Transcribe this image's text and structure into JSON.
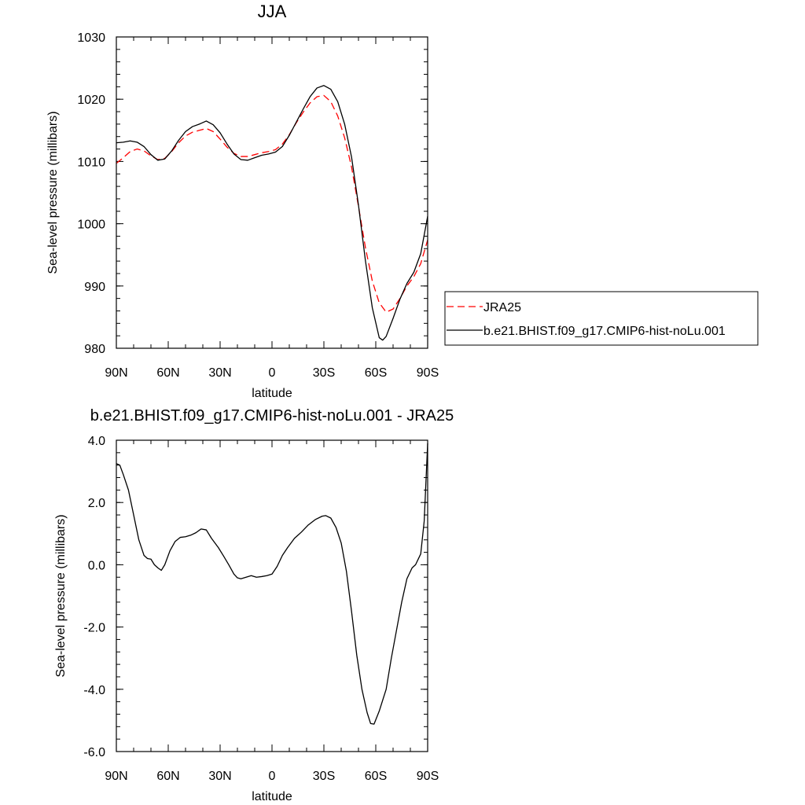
{
  "chart_data": [
    {
      "type": "line",
      "title": "JJA",
      "xlabel": "latitude",
      "ylabel": "Sea-level pressure (millibars)",
      "xlim": [
        90,
        -90
      ],
      "ylim": [
        980,
        1030
      ],
      "x_ticks": [
        90,
        60,
        30,
        0,
        -30,
        -60,
        -90
      ],
      "x_tick_labels": [
        "90N",
        "60N",
        "30N",
        "0",
        "30S",
        "60S",
        "90S"
      ],
      "y_ticks": [
        980,
        990,
        1000,
        1010,
        1020,
        1030
      ],
      "y_tick_labels": [
        "980",
        "990",
        "1000",
        "1010",
        "1020",
        "1030"
      ],
      "legend_position": "right",
      "series": [
        {
          "name": "JRA25",
          "color": "#ff0000",
          "dash": "dashed",
          "points": [
            [
              90,
              1009.7
            ],
            [
              86,
              1010.6
            ],
            [
              82,
              1011.6
            ],
            [
              78,
              1012.0
            ],
            [
              74,
              1011.7
            ],
            [
              70,
              1010.9
            ],
            [
              66,
              1010.3
            ],
            [
              62,
              1010.5
            ],
            [
              58,
              1011.6
            ],
            [
              54,
              1013.0
            ],
            [
              50,
              1014.1
            ],
            [
              46,
              1014.7
            ],
            [
              42,
              1015.0
            ],
            [
              38,
              1015.3
            ],
            [
              34,
              1014.8
            ],
            [
              30,
              1013.6
            ],
            [
              26,
              1012.3
            ],
            [
              22,
              1011.3
            ],
            [
              18,
              1010.8
            ],
            [
              14,
              1010.8
            ],
            [
              10,
              1011.1
            ],
            [
              6,
              1011.4
            ],
            [
              2,
              1011.6
            ],
            [
              -2,
              1011.9
            ],
            [
              -6,
              1012.8
            ],
            [
              -10,
              1014.3
            ],
            [
              -14,
              1016.2
            ],
            [
              -18,
              1017.9
            ],
            [
              -22,
              1019.4
            ],
            [
              -26,
              1020.4
            ],
            [
              -30,
              1020.6
            ],
            [
              -34,
              1019.6
            ],
            [
              -38,
              1017.3
            ],
            [
              -42,
              1013.8
            ],
            [
              -46,
              1009.1
            ],
            [
              -50,
              1002.8
            ],
            [
              -54,
              996.2
            ],
            [
              -58,
              990.8
            ],
            [
              -62,
              987.3
            ],
            [
              -66,
              985.8
            ],
            [
              -70,
              986.3
            ],
            [
              -74,
              988.0
            ],
            [
              -78,
              990.0
            ],
            [
              -82,
              991.5
            ],
            [
              -86,
              993.6
            ],
            [
              -90,
              997.4
            ]
          ]
        },
        {
          "name": "b.e21.BHIST.f09_g17.CMIP6-hist-noLu.001",
          "color": "#000000",
          "dash": "solid",
          "points": [
            [
              90,
              1013.0
            ],
            [
              86,
              1013.1
            ],
            [
              82,
              1013.3
            ],
            [
              78,
              1013.1
            ],
            [
              74,
              1012.4
            ],
            [
              70,
              1011.1
            ],
            [
              66,
              1010.2
            ],
            [
              62,
              1010.4
            ],
            [
              58,
              1011.7
            ],
            [
              54,
              1013.4
            ],
            [
              50,
              1014.8
            ],
            [
              46,
              1015.6
            ],
            [
              42,
              1016.0
            ],
            [
              38,
              1016.5
            ],
            [
              34,
              1015.9
            ],
            [
              30,
              1014.6
            ],
            [
              26,
              1012.8
            ],
            [
              22,
              1011.2
            ],
            [
              18,
              1010.3
            ],
            [
              14,
              1010.2
            ],
            [
              10,
              1010.6
            ],
            [
              6,
              1011.0
            ],
            [
              2,
              1011.2
            ],
            [
              -2,
              1011.5
            ],
            [
              -6,
              1012.4
            ],
            [
              -10,
              1014.2
            ],
            [
              -14,
              1016.3
            ],
            [
              -18,
              1018.4
            ],
            [
              -22,
              1020.4
            ],
            [
              -26,
              1021.8
            ],
            [
              -30,
              1022.2
            ],
            [
              -34,
              1021.6
            ],
            [
              -38,
              1019.6
            ],
            [
              -42,
              1016.0
            ],
            [
              -46,
              1010.7
            ],
            [
              -50,
              1003.0
            ],
            [
              -54,
              994.1
            ],
            [
              -58,
              986.5
            ],
            [
              -62,
              981.7
            ],
            [
              -64,
              981.3
            ],
            [
              -66,
              981.9
            ],
            [
              -70,
              984.8
            ],
            [
              -74,
              987.9
            ],
            [
              -78,
              990.4
            ],
            [
              -82,
              992.2
            ],
            [
              -86,
              995.2
            ],
            [
              -90,
              1001.2
            ]
          ]
        }
      ]
    },
    {
      "type": "line",
      "title": "b.e21.BHIST.f09_g17.CMIP6-hist-noLu.001 - JRA25",
      "xlabel": "latitude",
      "ylabel": "Sea-level pressure (millibars)",
      "xlim": [
        90,
        -90
      ],
      "ylim": [
        -6,
        4
      ],
      "x_ticks": [
        90,
        60,
        30,
        0,
        -30,
        -60,
        -90
      ],
      "x_tick_labels": [
        "90N",
        "60N",
        "30N",
        "0",
        "30S",
        "60S",
        "90S"
      ],
      "y_ticks": [
        -6,
        -4,
        -2,
        0,
        2,
        4
      ],
      "y_tick_labels": [
        "-6.0",
        "-4.0",
        "-2.0",
        "0.0",
        "2.0",
        "4.0"
      ],
      "series": [
        {
          "color": "#000000",
          "dash": "solid",
          "points": [
            [
              90,
              3.25
            ],
            [
              88,
              3.2
            ],
            [
              86,
              2.9
            ],
            [
              83,
              2.4
            ],
            [
              80,
              1.6
            ],
            [
              77,
              0.8
            ],
            [
              74,
              0.3
            ],
            [
              72,
              0.2
            ],
            [
              70,
              0.18
            ],
            [
              68,
              0.0
            ],
            [
              66,
              -0.1
            ],
            [
              64,
              -0.18
            ],
            [
              62,
              0.0
            ],
            [
              59,
              0.45
            ],
            [
              56,
              0.75
            ],
            [
              53,
              0.88
            ],
            [
              50,
              0.9
            ],
            [
              47,
              0.95
            ],
            [
              44,
              1.03
            ],
            [
              41,
              1.15
            ],
            [
              38,
              1.12
            ],
            [
              35,
              0.85
            ],
            [
              31,
              0.55
            ],
            [
              28,
              0.28
            ],
            [
              25,
              0.0
            ],
            [
              22,
              -0.3
            ],
            [
              20,
              -0.42
            ],
            [
              18,
              -0.45
            ],
            [
              15,
              -0.4
            ],
            [
              12,
              -0.35
            ],
            [
              9,
              -0.4
            ],
            [
              6,
              -0.38
            ],
            [
              3,
              -0.35
            ],
            [
              0,
              -0.3
            ],
            [
              -3,
              -0.05
            ],
            [
              -6,
              0.3
            ],
            [
              -9,
              0.55
            ],
            [
              -13,
              0.85
            ],
            [
              -17,
              1.05
            ],
            [
              -21,
              1.28
            ],
            [
              -25,
              1.45
            ],
            [
              -29,
              1.56
            ],
            [
              -31,
              1.58
            ],
            [
              -34,
              1.5
            ],
            [
              -37,
              1.2
            ],
            [
              -40,
              0.7
            ],
            [
              -43,
              -0.2
            ],
            [
              -46,
              -1.5
            ],
            [
              -49,
              -2.9
            ],
            [
              -52,
              -4.0
            ],
            [
              -55,
              -4.75
            ],
            [
              -57,
              -5.1
            ],
            [
              -59,
              -5.12
            ],
            [
              -62,
              -4.7
            ],
            [
              -66,
              -4.0
            ],
            [
              -69,
              -3.0
            ],
            [
              -72,
              -2.1
            ],
            [
              -75,
              -1.2
            ],
            [
              -78,
              -0.45
            ],
            [
              -81,
              -0.1
            ],
            [
              -83,
              0.0
            ],
            [
              -86,
              0.35
            ],
            [
              -88,
              1.4
            ],
            [
              -90,
              3.9
            ]
          ]
        }
      ]
    }
  ]
}
